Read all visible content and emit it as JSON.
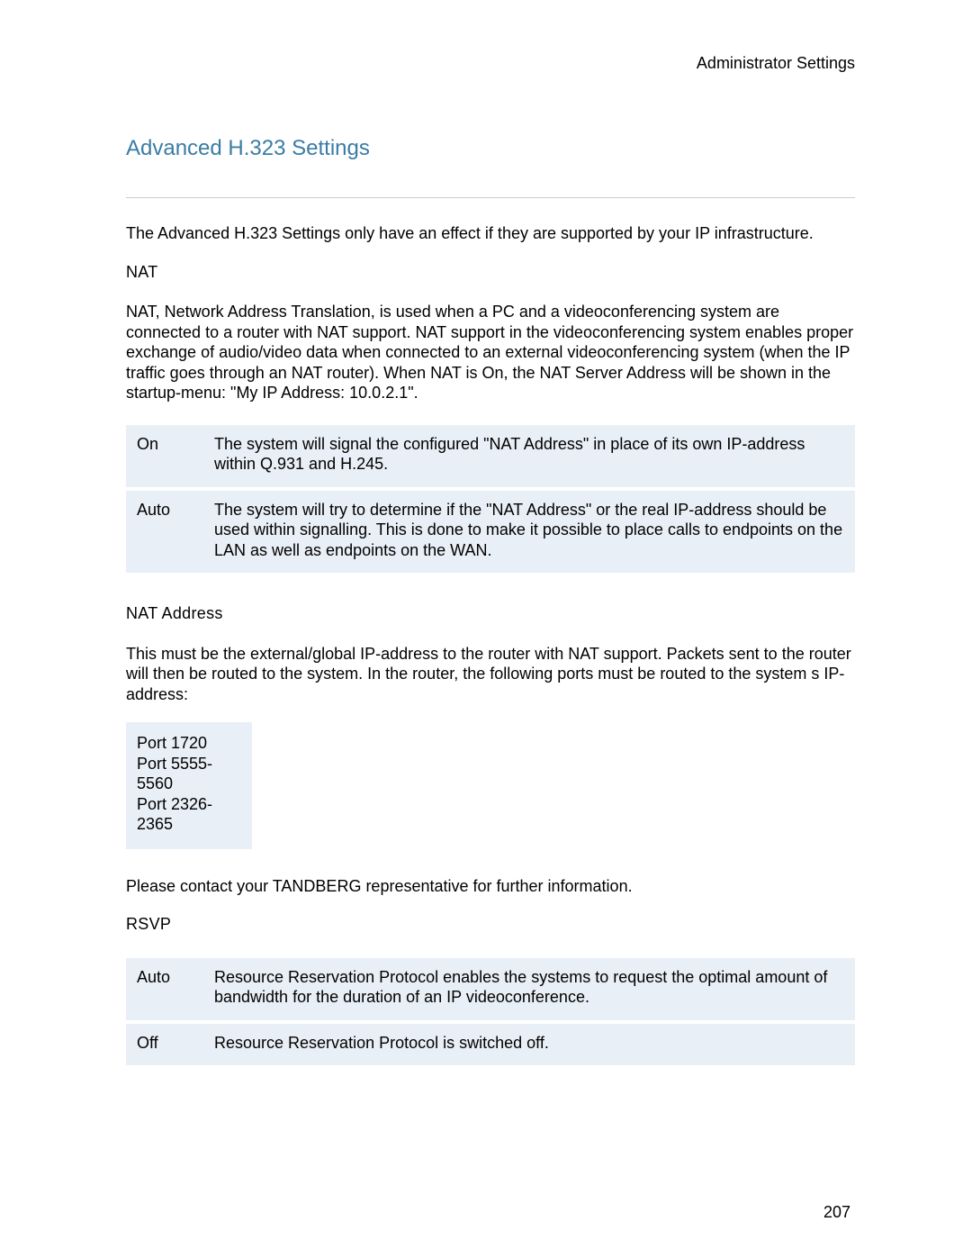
{
  "header": {
    "section_label": "Administrator Settings"
  },
  "title": "Advanced H.323 Settings",
  "intro": "The Advanced H.323 Settings only have an effect if they are supported by your IP infrastructure.",
  "nat": {
    "heading": "NAT",
    "description": "NAT, Network Address Translation, is used  when a PC and a videoconferencing system are connected to a router with NAT support. NAT support in the videoconferencing system enables proper exchange of audio/video data when connected to an external videoconferencing system (when the IP traffic goes through an NAT router). When NAT is On, the NAT Server Address will be shown in the startup-menu: \"My IP Address: 10.0.2.1\".",
    "options": [
      {
        "label": "On",
        "text": "The system will signal the configured \"NAT Address\" in place of its own IP-address within Q.931 and H.245."
      },
      {
        "label": "Auto",
        "text": "The system will try to determine if the \"NAT Address\" or the real IP-address should be used within signalling.  This is done to make it possible to place calls to endpoints on the LAN as well as endpoints on the WAN."
      }
    ]
  },
  "nat_address": {
    "heading": "NAT Address",
    "description": "This must be the external/global IP-address to the router with NAT support. Packets sent to the router will then be routed to the system. In the router, the following ports must be routed to the system s IP-address:",
    "ports": "Port 1720\nPort 5555-5560\nPort 2326-2365",
    "contact": "Please contact your TANDBERG representative for further information."
  },
  "rsvp": {
    "heading": "RSVP",
    "options": [
      {
        "label": "Auto",
        "text": "Resource Reservation Protocol enables the systems to request the optimal amount of bandwidth for the duration of an IP videoconference."
      },
      {
        "label": "Off",
        "text": "Resource Reservation Protocol is switched off."
      }
    ]
  },
  "page_number": "207",
  "colors": {
    "title_color": "#3a7ca5",
    "table_bg": "#e9eff6",
    "divider": "#cccccc",
    "text": "#000000",
    "background": "#ffffff"
  }
}
